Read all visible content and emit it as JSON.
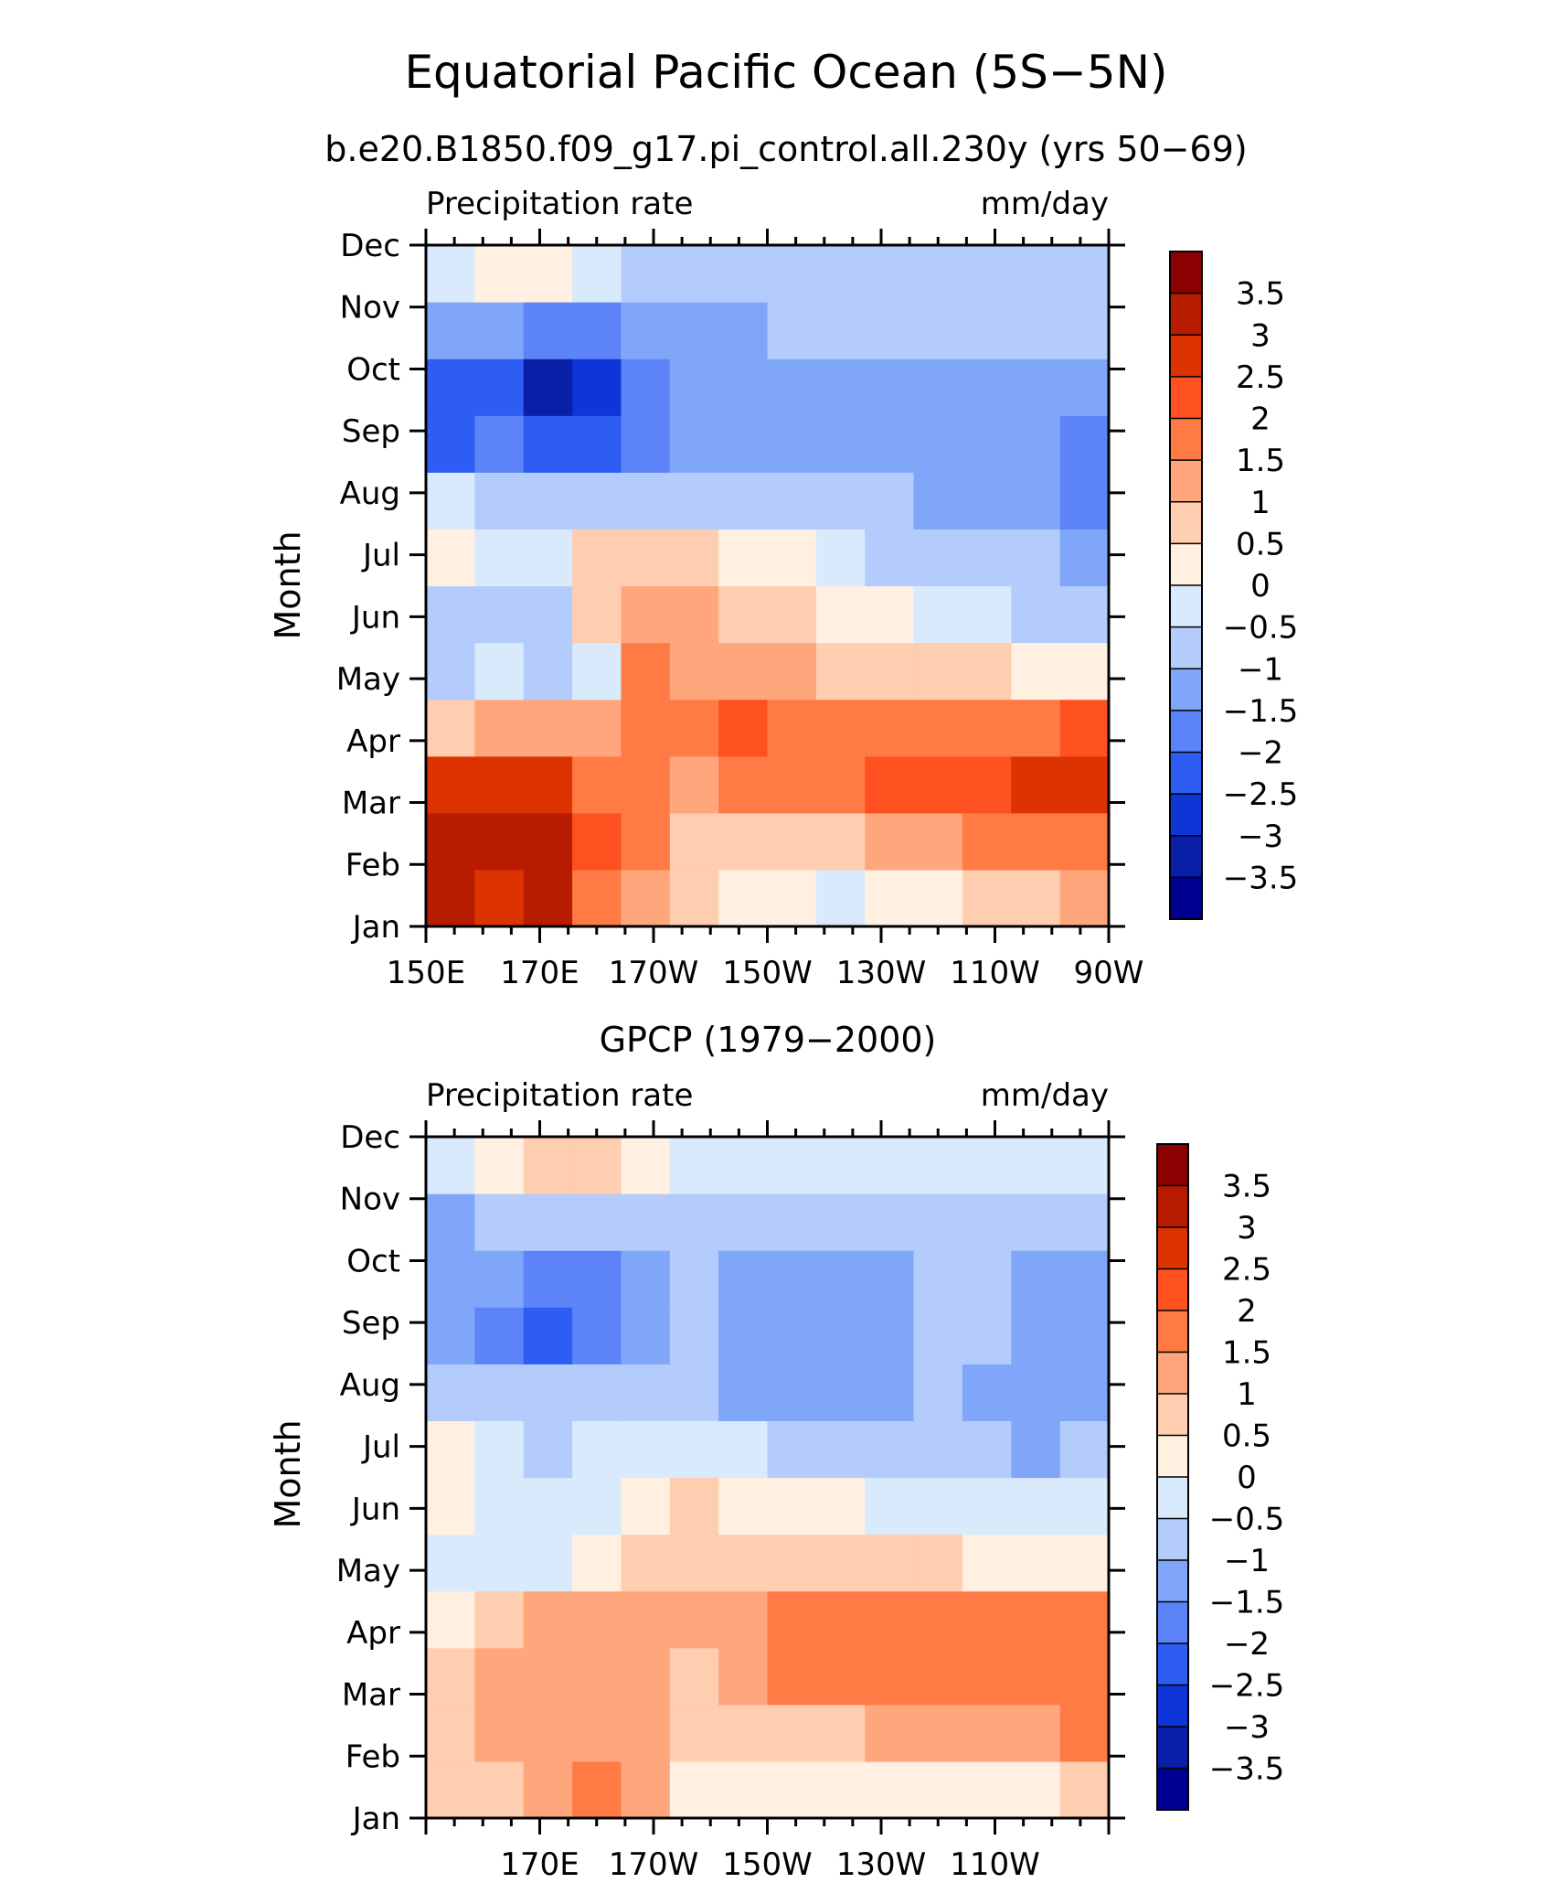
{
  "main_title": "Equatorial Pacific Ocean (5S−5N)",
  "colorbar": {
    "levels": [
      "3.5",
      "3",
      "2.5",
      "2",
      "1.5",
      "1",
      "0.5",
      "0",
      "−0.5",
      "−1",
      "−1.5",
      "−2",
      "−2.5",
      "−3",
      "−3.5"
    ],
    "colors_top_to_bottom": [
      "#8b0000",
      "#b81c00",
      "#dd3300",
      "#ff5020",
      "#ff7a45",
      "#ffa67d",
      "#ffcdb0",
      "#fff0e1",
      "#d9eafc",
      "#b3ccfb",
      "#80a6fa",
      "#5c84f8",
      "#2e5df3",
      "#0f35d6",
      "#0a1fa8",
      "#000090"
    ]
  },
  "chart_data": [
    {
      "type": "heatmap",
      "title": "b.e20.B1850.f09_g17.pi_control.all.230y (yrs 50−69)",
      "left_label": "Precipitation rate",
      "right_label": "mm/day",
      "ylabel": "Month",
      "y_ticks": [
        "Jan",
        "Feb",
        "Mar",
        "Apr",
        "May",
        "Jun",
        "Jul",
        "Aug",
        "Sep",
        "Oct",
        "Nov",
        "Dec"
      ],
      "x_ticks": [
        "150E",
        "170E",
        "170W",
        "150W",
        "130W",
        "110W",
        "90W"
      ],
      "x_range": [
        150,
        270
      ],
      "x_tick_values": [
        150,
        170,
        190,
        210,
        230,
        250,
        270
      ],
      "y_range": [
        1,
        12
      ],
      "values": [
        [
          3.2,
          2.6,
          3.0,
          1.8,
          1.2,
          0.5,
          0.2,
          0.0,
          -0.1,
          0.0,
          0.3,
          0.6,
          0.8,
          1.0
        ],
        [
          3.3,
          3.0,
          3.2,
          2.2,
          1.5,
          0.8,
          0.6,
          0.7,
          0.9,
          1.1,
          1.3,
          1.6,
          1.6,
          1.8
        ],
        [
          2.8,
          2.6,
          2.6,
          1.8,
          1.5,
          1.1,
          1.5,
          1.7,
          1.9,
          2.1,
          2.3,
          2.3,
          2.5,
          2.6
        ],
        [
          0.7,
          1.4,
          1.1,
          1.3,
          1.6,
          1.6,
          2.0,
          1.9,
          1.8,
          1.9,
          1.8,
          1.8,
          1.9,
          2.1
        ],
        [
          -1.0,
          -0.4,
          -0.7,
          -0.1,
          1.5,
          1.2,
          1.0,
          1.0,
          0.9,
          0.8,
          0.6,
          0.5,
          0.3,
          0.2
        ],
        [
          -0.8,
          -0.7,
          -0.6,
          0.5,
          1.3,
          1.4,
          0.9,
          0.6,
          0.4,
          0.1,
          -0.2,
          -0.5,
          -0.7,
          -0.8
        ],
        [
          0.2,
          -0.2,
          -0.3,
          0.8,
          0.9,
          0.7,
          0.4,
          0.0,
          -0.4,
          -0.6,
          -0.7,
          -0.9,
          -1.0,
          -1.2
        ],
        [
          -0.4,
          -0.8,
          -1.0,
          -0.8,
          -0.6,
          -0.7,
          -0.9,
          -0.9,
          -1.0,
          -1.0,
          -1.1,
          -1.2,
          -1.3,
          -1.6
        ],
        [
          -2.1,
          -2.0,
          -2.3,
          -2.4,
          -1.8,
          -1.2,
          -1.1,
          -1.2,
          -1.1,
          -1.2,
          -1.3,
          -1.4,
          -1.4,
          -1.6
        ],
        [
          -2.5,
          -2.1,
          -3.1,
          -2.6,
          -1.8,
          -1.5,
          -1.3,
          -1.3,
          -1.3,
          -1.3,
          -1.3,
          -1.2,
          -1.2,
          -1.3
        ],
        [
          -1.4,
          -1.5,
          -1.9,
          -2.0,
          -1.5,
          -1.3,
          -1.2,
          -1.0,
          -1.0,
          -0.9,
          -0.9,
          -0.8,
          -0.8,
          -0.8
        ],
        [
          -0.4,
          0.3,
          0.2,
          -0.5,
          -0.8,
          -0.8,
          -0.8,
          -0.7,
          -0.7,
          -0.8,
          -0.8,
          -0.7,
          -0.7,
          -0.8
        ]
      ]
    },
    {
      "type": "heatmap",
      "title": "GPCP (1979−2000)",
      "left_label": "Precipitation rate",
      "right_label": "mm/day",
      "ylabel": "Month",
      "y_ticks": [
        "Jan",
        "Feb",
        "Mar",
        "Apr",
        "May",
        "Jun",
        "Jul",
        "Aug",
        "Sep",
        "Oct",
        "Nov",
        "Dec"
      ],
      "x_ticks": [
        "170E",
        "170W",
        "150W",
        "130W",
        "110W"
      ],
      "x_range": [
        150,
        270
      ],
      "x_tick_values": [
        170,
        190,
        210,
        230,
        250
      ],
      "y_range": [
        1,
        12
      ],
      "values": [
        [
          0.6,
          0.9,
          1.2,
          1.5,
          1.4,
          0.4,
          0.3,
          0.2,
          0.2,
          0.1,
          0.0,
          0.2,
          0.3,
          0.5
        ],
        [
          0.9,
          1.1,
          1.3,
          1.2,
          1.1,
          0.5,
          0.6,
          0.8,
          0.9,
          1.0,
          1.1,
          1.3,
          1.3,
          1.5
        ],
        [
          0.8,
          1.2,
          1.1,
          1.2,
          1.0,
          0.6,
          1.3,
          1.5,
          1.7,
          1.8,
          1.9,
          1.7,
          1.9,
          1.7
        ],
        [
          0.4,
          0.9,
          1.2,
          1.0,
          1.0,
          1.0,
          1.3,
          1.5,
          1.7,
          1.9,
          1.8,
          1.7,
          1.9,
          1.6
        ],
        [
          -0.2,
          -0.3,
          -0.4,
          0.2,
          0.9,
          0.8,
          0.8,
          0.9,
          0.8,
          0.6,
          0.5,
          0.4,
          0.3,
          0.2
        ],
        [
          0.3,
          -0.2,
          -0.5,
          -0.3,
          0.4,
          0.5,
          0.4,
          0.2,
          0.0,
          -0.1,
          -0.3,
          -0.5,
          -0.5,
          -0.4
        ],
        [
          0.4,
          -0.3,
          -0.6,
          -0.5,
          -0.4,
          -0.2,
          -0.4,
          -0.6,
          -0.8,
          -0.8,
          -0.9,
          -0.9,
          -1.1,
          -1.0
        ],
        [
          -0.6,
          -0.8,
          -1.0,
          -1.0,
          -0.8,
          -0.8,
          -1.3,
          -1.4,
          -1.2,
          -1.2,
          -1.0,
          -1.1,
          -1.3,
          -1.2
        ],
        [
          -1.4,
          -1.6,
          -2.1,
          -1.6,
          -1.3,
          -1.0,
          -1.4,
          -1.5,
          -1.4,
          -1.2,
          -1.0,
          -1.0,
          -1.2,
          -1.2
        ],
        [
          -1.3,
          -1.2,
          -1.6,
          -1.9,
          -1.4,
          -1.0,
          -1.3,
          -1.4,
          -1.4,
          -1.3,
          -0.9,
          -1.0,
          -1.2,
          -1.4
        ],
        [
          -1.2,
          -0.8,
          -0.9,
          -1.0,
          -0.8,
          -0.6,
          -0.7,
          -0.6,
          -0.6,
          -0.6,
          -0.6,
          -0.6,
          -0.8,
          -0.8
        ],
        [
          -0.3,
          0.4,
          0.9,
          0.6,
          0.3,
          -0.1,
          -0.3,
          -0.3,
          -0.3,
          -0.3,
          -0.3,
          -0.3,
          -0.4,
          -0.4
        ]
      ]
    }
  ]
}
